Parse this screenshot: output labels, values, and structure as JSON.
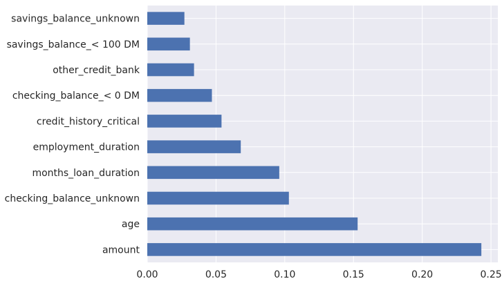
{
  "chart_data": {
    "type": "bar",
    "orientation": "horizontal",
    "categories": [
      "amount",
      "age",
      "checking_balance_unknown",
      "months_loan_duration",
      "employment_duration",
      "credit_history_critical",
      "checking_balance_< 0 DM",
      "other_credit_bank",
      "savings_balance_< 100 DM",
      "savings_balance_unknown"
    ],
    "values": [
      0.243,
      0.153,
      0.103,
      0.096,
      0.068,
      0.054,
      0.047,
      0.034,
      0.031,
      0.027
    ],
    "xlim": [
      0,
      0.255
    ],
    "xticks": [
      "0.00",
      "0.05",
      "0.10",
      "0.15",
      "0.20",
      "0.25"
    ],
    "title": "",
    "xlabel": "",
    "ylabel": "",
    "grid": true,
    "colors": {
      "bar": "#4c72b0",
      "background": "#eaeaf2",
      "grid": "#ffffff"
    }
  }
}
